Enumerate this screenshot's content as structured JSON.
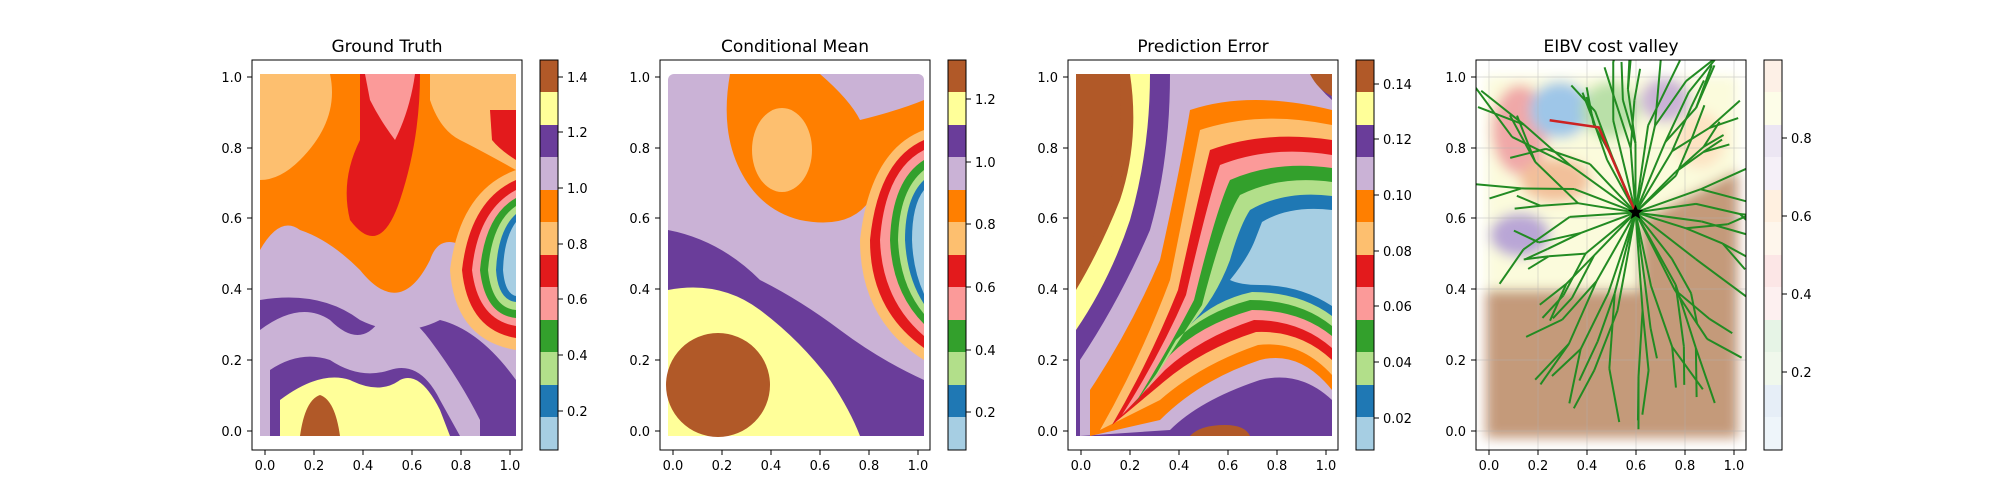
{
  "chart_data": [
    {
      "type": "contourf",
      "title": "Ground Truth",
      "xlabel": "",
      "ylabel": "",
      "xlim": [
        -0.05,
        1.05
      ],
      "ylim": [
        -0.05,
        1.05
      ],
      "xticks": [
        "0.0",
        "0.2",
        "0.4",
        "0.6",
        "0.8",
        "1.0"
      ],
      "yticks": [
        "0.0",
        "0.2",
        "0.4",
        "0.6",
        "0.8",
        "1.0"
      ],
      "colormap": [
        "#a6cee3",
        "#1f78b4",
        "#b2df8a",
        "#33a02c",
        "#fb9a99",
        "#e31a1c",
        "#fdbf6f",
        "#ff7f00",
        "#cab2d6",
        "#6a3d9a",
        "#ffff99",
        "#b15928"
      ],
      "colorbar": {
        "range": [
          0.0,
          1.5
        ],
        "ticks": [
          "0.2",
          "0.4",
          "0.6",
          "0.8",
          "1.0",
          "1.2",
          "1.4"
        ]
      },
      "regions": [
        {
          "value": 0.9,
          "description": "orange band across upper middle, left column to right"
        },
        {
          "value": 0.6,
          "description": "red band center-top"
        },
        {
          "value": 0.7,
          "description": "pink region top center"
        },
        {
          "value": 1.1,
          "description": "purple band lower left to right"
        },
        {
          "value": 1.0,
          "description": "lavender region left middle"
        },
        {
          "value": 1.3,
          "description": "yellow region bottom"
        },
        {
          "value": 1.45,
          "description": "brown blob bottom near x=0.25"
        },
        {
          "value": 0.1,
          "description": "light blue minimum right side around x=1.0 y=0.55"
        }
      ]
    },
    {
      "type": "contourf",
      "title": "Conditional Mean",
      "xlim": [
        -0.05,
        1.05
      ],
      "ylim": [
        -0.05,
        1.05
      ],
      "xticks": [
        "0.0",
        "0.2",
        "0.4",
        "0.6",
        "0.8",
        "1.0"
      ],
      "yticks": [
        "0.0",
        "0.2",
        "0.4",
        "0.6",
        "0.8",
        "1.0"
      ],
      "colormap": [
        "#a6cee3",
        "#1f78b4",
        "#b2df8a",
        "#33a02c",
        "#fb9a99",
        "#e31a1c",
        "#fdbf6f",
        "#ff7f00",
        "#cab2d6",
        "#6a3d9a",
        "#ffff99",
        "#b15928"
      ],
      "colorbar": {
        "range": [
          0.1,
          1.35
        ],
        "ticks": [
          "0.2",
          "0.4",
          "0.6",
          "0.8",
          "1.0",
          "1.2"
        ]
      },
      "regions": [
        {
          "value": 1.0,
          "description": "lavender background upper left and right"
        },
        {
          "value": 0.9,
          "description": "orange region top center around x=0.4 y=0.8"
        },
        {
          "value": 0.8,
          "description": "light orange oval center x=0.4 y=0.8"
        },
        {
          "value": 1.1,
          "description": "purple diagonal band"
        },
        {
          "value": 1.2,
          "description": "yellow region lower left"
        },
        {
          "value": 1.3,
          "description": "brown disk around x=0.2 y=0.2"
        },
        {
          "value": 0.15,
          "description": "blue minimum right edge y=0.55"
        }
      ]
    },
    {
      "type": "contourf",
      "title": "Prediction Error",
      "xlim": [
        -0.05,
        1.05
      ],
      "ylim": [
        -0.05,
        1.05
      ],
      "xticks": [
        "0.0",
        "0.2",
        "0.4",
        "0.6",
        "0.8",
        "1.0"
      ],
      "yticks": [
        "0.0",
        "0.2",
        "0.4",
        "0.6",
        "0.8",
        "1.0"
      ],
      "colormap": [
        "#a6cee3",
        "#1f78b4",
        "#b2df8a",
        "#33a02c",
        "#fb9a99",
        "#e31a1c",
        "#fdbf6f",
        "#ff7f00",
        "#cab2d6",
        "#6a3d9a",
        "#ffff99",
        "#b15928"
      ],
      "colorbar": {
        "range": [
          0.01,
          0.15
        ],
        "ticks": [
          "0.02",
          "0.04",
          "0.06",
          "0.08",
          "0.10",
          "0.12",
          "0.14"
        ]
      },
      "regions": [
        {
          "value": 0.145,
          "description": "brown maximum upper left and top right corner"
        },
        {
          "value": 0.13,
          "description": "yellow band along path"
        },
        {
          "value": 0.015,
          "description": "light blue minimum along sampled path right middle"
        },
        {
          "value": 0.145,
          "description": "brown small patch bottom center x=0.65"
        }
      ]
    },
    {
      "type": "heatmap",
      "title": "EIBV cost valley",
      "xlim": [
        -0.05,
        1.05
      ],
      "ylim": [
        -0.05,
        1.05
      ],
      "xticks": [
        "0.0",
        "0.2",
        "0.4",
        "0.6",
        "0.8",
        "1.0"
      ],
      "yticks": [
        "0.0",
        "0.2",
        "0.4",
        "0.6",
        "0.8",
        "1.0"
      ],
      "colorbar": {
        "range": [
          0.0,
          1.0
        ],
        "ticks": [
          "0.2",
          "0.4",
          "0.6",
          "0.8"
        ]
      },
      "grid": true,
      "current_location": [
        0.6,
        0.62
      ],
      "selected_path": [
        [
          0.6,
          0.62
        ],
        [
          0.45,
          0.86
        ],
        [
          0.25,
          0.88
        ]
      ],
      "tree_color": "#228b22",
      "path_color": "#cc2222"
    }
  ]
}
